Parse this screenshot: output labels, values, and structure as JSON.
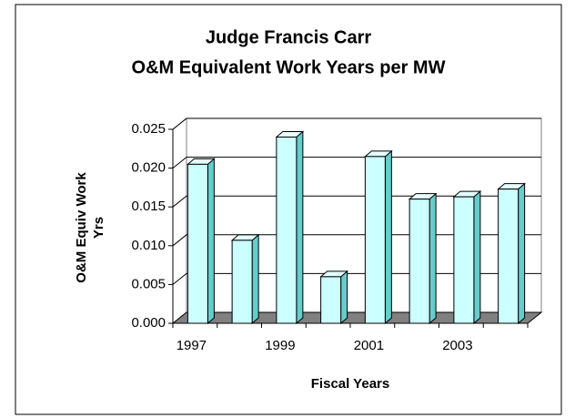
{
  "chart_data": {
    "type": "bar3d",
    "title": [
      "Judge Francis Carr",
      "O&M Equivalent Work Years per MW"
    ],
    "xlabel": "Fiscal Years",
    "ylabel": [
      "O&M Equiv Work",
      "Yrs"
    ],
    "categories": [
      "1997",
      null,
      "1999",
      null,
      "2001",
      null,
      "2003",
      null
    ],
    "values": [
      0.0205,
      0.0107,
      0.024,
      0.006,
      0.0215,
      0.016,
      0.0163,
      0.0173
    ],
    "color": "#ccffff",
    "ylim": [
      0,
      0.025
    ],
    "yticks": [
      {
        "value": 0,
        "label": "0.000"
      },
      0.005,
      {
        "value": 0.01,
        "label": "0.010"
      },
      0.015,
      {
        "value": 0.02,
        "label": "0.020"
      },
      0.025
    ],
    "grid": true
  }
}
